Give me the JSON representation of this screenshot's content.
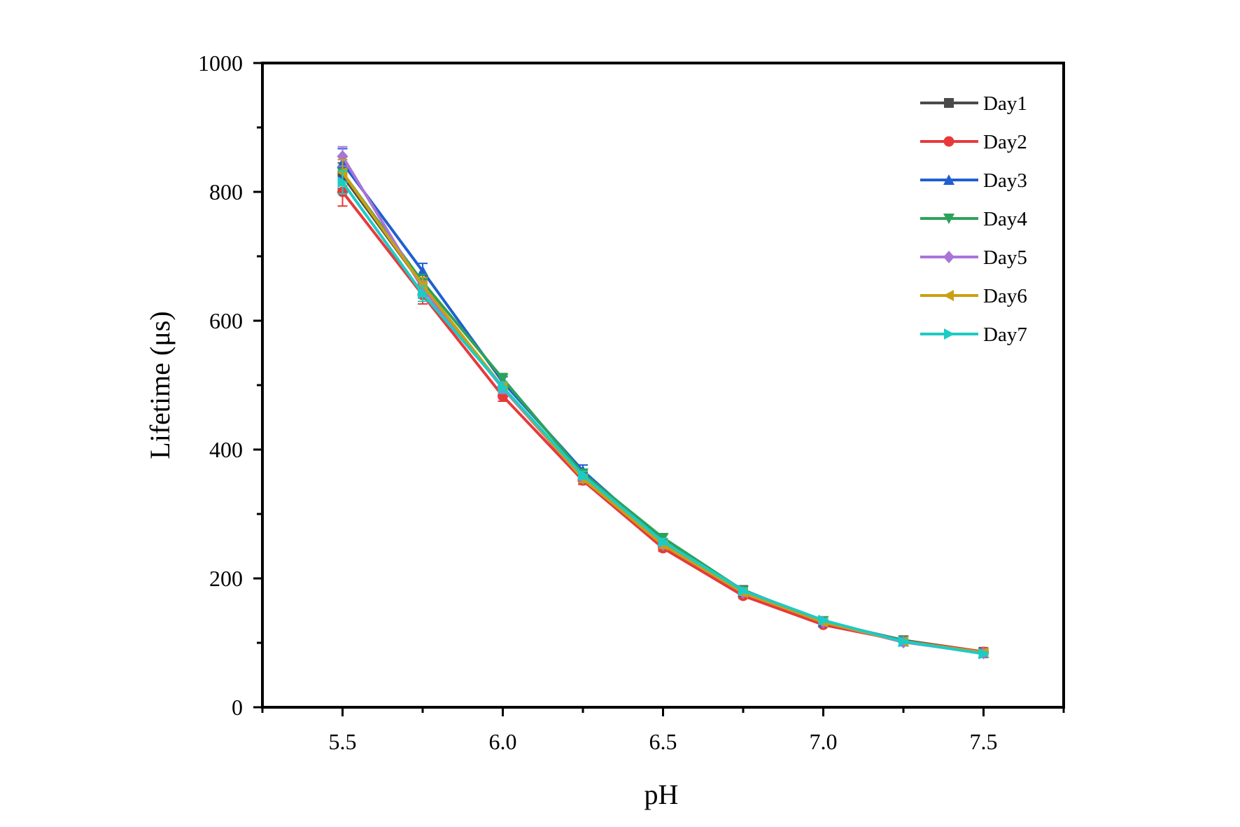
{
  "chart_data": {
    "type": "line",
    "title": "",
    "xlabel": "pH",
    "ylabel": "Lifetime (μs)",
    "xlim": [
      5.25,
      7.75
    ],
    "ylim": [
      0,
      1000
    ],
    "x_ticks": [
      "5.5",
      "6.0",
      "6.5",
      "7.0",
      "7.5"
    ],
    "y_ticks": [
      "0",
      "200",
      "400",
      "600",
      "800",
      "1000"
    ],
    "grid": false,
    "legend_position": "top-right",
    "x": [
      5.5,
      5.75,
      6.0,
      6.25,
      6.5,
      6.75,
      7.0,
      7.25,
      7.5
    ],
    "series": [
      {
        "name": "Day1",
        "color": "#4a4a4a",
        "marker": "square",
        "values": [
          825,
          655,
          495,
          360,
          255,
          182,
          133,
          104,
          86
        ],
        "errors": [
          20,
          12,
          8,
          6,
          5,
          4,
          3,
          3,
          3
        ]
      },
      {
        "name": "Day2",
        "color": "#e8393a",
        "marker": "circle",
        "values": [
          800,
          640,
          483,
          352,
          247,
          173,
          128,
          103,
          86
        ],
        "errors": [
          22,
          14,
          8,
          6,
          5,
          4,
          3,
          3,
          3
        ]
      },
      {
        "name": "Day3",
        "color": "#1f5fd1",
        "marker": "triangle-up",
        "values": [
          845,
          677,
          505,
          367,
          257,
          179,
          132,
          102,
          84
        ],
        "errors": [
          22,
          12,
          8,
          9,
          5,
          4,
          3,
          3,
          3
        ]
      },
      {
        "name": "Day4",
        "color": "#2ca25a",
        "marker": "triangle-down",
        "values": [
          830,
          660,
          510,
          363,
          263,
          181,
          134,
          103,
          84
        ],
        "errors": [
          20,
          12,
          8,
          6,
          5,
          4,
          3,
          3,
          3
        ]
      },
      {
        "name": "Day5",
        "color": "#a974d8",
        "marker": "diamond",
        "values": [
          855,
          650,
          495,
          355,
          252,
          178,
          132,
          101,
          84
        ],
        "errors": [
          15,
          12,
          8,
          6,
          5,
          4,
          3,
          3,
          3
        ]
      },
      {
        "name": "Day6",
        "color": "#c9a010",
        "marker": "triangle-left",
        "values": [
          830,
          655,
          497,
          355,
          252,
          178,
          132,
          102,
          85
        ],
        "errors": [
          20,
          12,
          8,
          6,
          5,
          4,
          3,
          3,
          3
        ]
      },
      {
        "name": "Day7",
        "color": "#1ccbc6",
        "marker": "triangle-right",
        "values": [
          815,
          642,
          497,
          360,
          257,
          181,
          135,
          102,
          83
        ],
        "errors": [
          18,
          12,
          8,
          6,
          5,
          4,
          3,
          3,
          3
        ]
      }
    ]
  }
}
